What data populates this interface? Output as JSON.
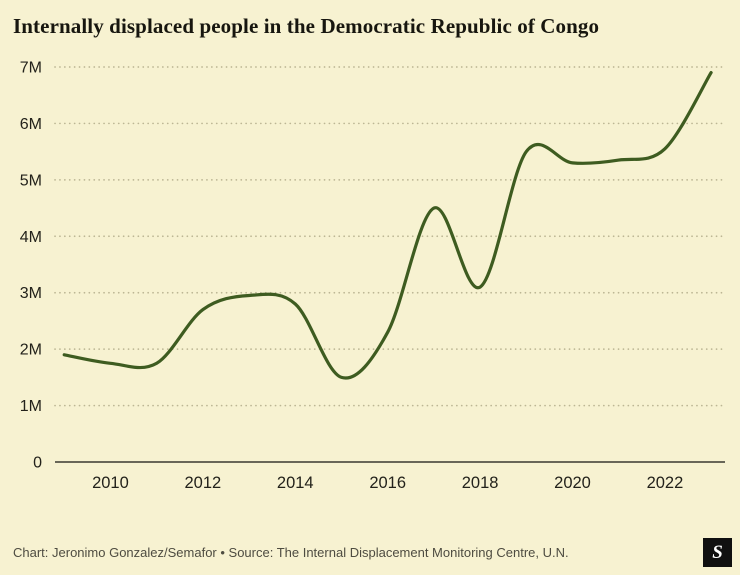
{
  "chart_data": {
    "type": "line",
    "title": "Internally displaced people in the Democratic Republic of Congo",
    "x": [
      2009,
      2010,
      2011,
      2012,
      2013,
      2014,
      2015,
      2016,
      2017,
      2018,
      2019,
      2020,
      2021,
      2022,
      2023
    ],
    "y_millions": [
      1.9,
      1.75,
      1.75,
      2.7,
      2.95,
      2.8,
      1.5,
      2.3,
      4.5,
      3.1,
      5.5,
      5.3,
      5.35,
      5.55,
      6.9
    ],
    "xlim": [
      2008.8,
      2023.3
    ],
    "ylim": [
      0,
      7
    ],
    "xticks": [
      2010,
      2012,
      2014,
      2016,
      2018,
      2020,
      2022
    ],
    "yticks": [
      0,
      1,
      2,
      3,
      4,
      5,
      6,
      7
    ],
    "ytick_labels": [
      "0",
      "1M",
      "2M",
      "3M",
      "4M",
      "5M",
      "6M",
      "7M"
    ],
    "grid": "dotted horizontal gridlines, solid baseline at 0",
    "legend": "none"
  },
  "footer": {
    "attribution": "Chart: Jeronimo Gonzalez/Semafor • Source: The Internal Displacement Monitoring Centre, U.N.",
    "logo_text": "S"
  },
  "colors": {
    "background": "#f7f2d1",
    "line": "#3e5c20",
    "grid": "#bcb694",
    "axis": "#3a3930",
    "tick_text": "#23221b",
    "footer_text": "#4e4c41",
    "logo_bg": "#101010",
    "logo_fg": "#ffffff"
  }
}
